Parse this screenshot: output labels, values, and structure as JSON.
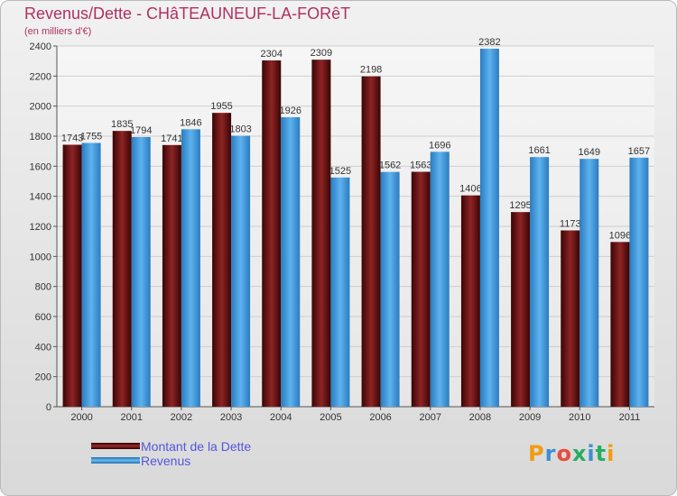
{
  "title": "Revenus/Dette - CHâTEAUNEUF-LA-FORêT",
  "subtitle": "(en milliers d'€)",
  "logo": {
    "text": "Proxiti",
    "colors": [
      "#f39c12",
      "#3b8fd3",
      "#e74c3c",
      "#27ae60"
    ]
  },
  "colors": {
    "dette": "#7a1a1a",
    "revenus": "#4ea6e6",
    "title": "#b03060",
    "legend_text": "#5555dd"
  },
  "chart_data": {
    "type": "bar",
    "title": "Revenus/Dette - CHâTEAUNEUF-LA-FORêT",
    "ylabel": "(en milliers d'€)",
    "xlabel": "",
    "categories": [
      "2000",
      "2001",
      "2002",
      "2003",
      "2004",
      "2005",
      "2006",
      "2007",
      "2008",
      "2009",
      "2010",
      "2011"
    ],
    "series": [
      {
        "name": "Montant de la Dette",
        "key": "dette",
        "values": [
          1743,
          1835,
          1741,
          1955,
          2304,
          2309,
          2198,
          1563,
          1406,
          1295,
          1173,
          1096
        ],
        "labels": [
          "1743",
          "1835",
          "1741",
          "1955",
          "2304",
          "2309",
          "2198",
          "1563",
          "1406",
          "1295",
          "1173",
          "1096"
        ]
      },
      {
        "name": "Revenus",
        "key": "revenus",
        "values": [
          1755,
          1794,
          1846,
          1803,
          1926,
          1525,
          1562,
          1696,
          2382,
          1661,
          1649,
          1657
        ],
        "labels": [
          "1755",
          "1794",
          "1846",
          "1803",
          "1926",
          "1525",
          "1562",
          "1696",
          "2382",
          "1661",
          "1649",
          "1657"
        ]
      }
    ],
    "ylim": [
      0,
      2400
    ],
    "yticks": [
      "0",
      "200",
      "400",
      "600",
      "800",
      "1000",
      "1200",
      "1400",
      "1600",
      "1800",
      "2000",
      "2200",
      "2400"
    ],
    "grid": true,
    "legend": "bottom-left"
  }
}
